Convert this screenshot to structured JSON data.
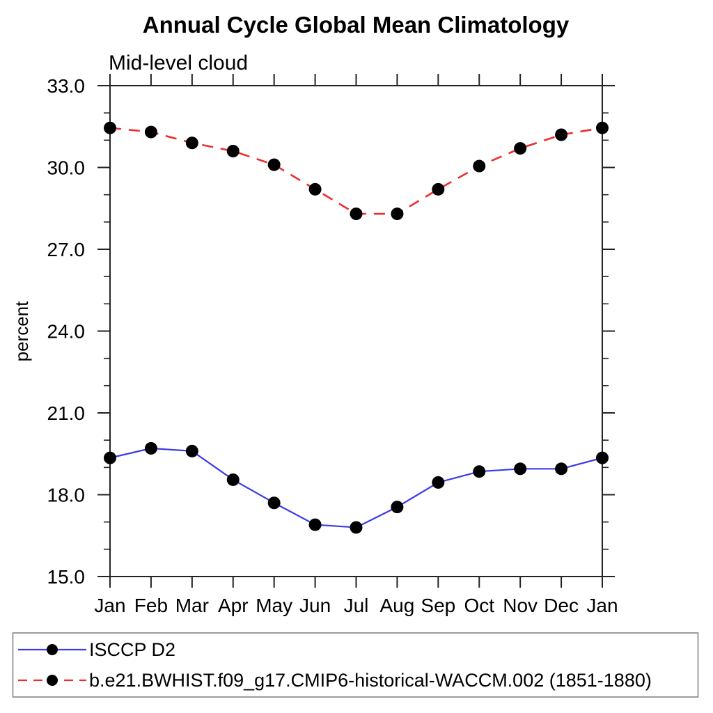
{
  "page": {
    "background": "#ffffff"
  },
  "chart_data": {
    "type": "line",
    "title": "Annual Cycle Global Mean Climatology",
    "subtitle": "Mid-level cloud",
    "ylabel": "percent",
    "xlabel": "",
    "categories": [
      "Jan",
      "Feb",
      "Mar",
      "Apr",
      "May",
      "Jun",
      "Jul",
      "Aug",
      "Sep",
      "Oct",
      "Nov",
      "Dec",
      "Jan"
    ],
    "series": [
      {
        "name": "ISCCP D2",
        "color": "#3a3ae8",
        "line_style": "solid",
        "marker": "filled-circle",
        "values": [
          19.35,
          19.7,
          19.6,
          18.55,
          17.7,
          16.9,
          16.8,
          17.55,
          18.45,
          18.85,
          18.95,
          18.95,
          19.35
        ]
      },
      {
        "name": "b.e21.BWHIST.f09_g17.CMIP6-historical-WACCM.002 (1851-1880)",
        "color": "#ee2e2e",
        "line_style": "dashed",
        "marker": "filled-circle",
        "values": [
          31.45,
          31.3,
          30.9,
          30.6,
          30.1,
          29.2,
          28.3,
          28.3,
          29.2,
          30.05,
          30.7,
          31.2,
          31.45
        ]
      }
    ],
    "ylim": [
      15.0,
      33.0
    ],
    "yticks": [
      15,
      18,
      21,
      24,
      27,
      30,
      33
    ],
    "ytick_labels": [
      "15.0",
      "18.0",
      "21.0",
      "24.0",
      "27.0",
      "30.0",
      "33.0"
    ],
    "y_minor_step": 1,
    "grid": false,
    "tick_direction": "out",
    "legend_position": "bottom-left-box",
    "marker_color": "#000000",
    "axis_color": "#222222"
  }
}
